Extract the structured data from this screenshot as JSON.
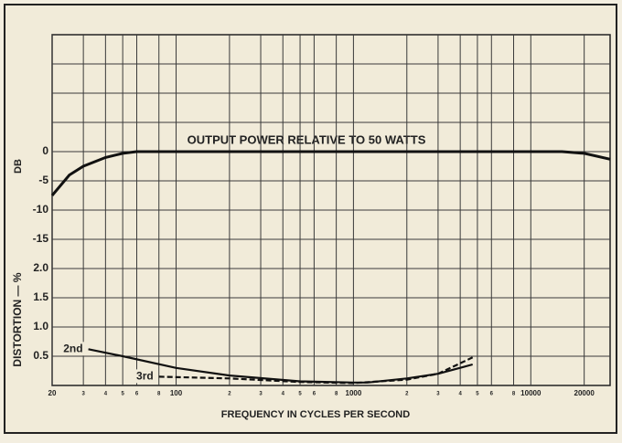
{
  "chart_data": {
    "type": "line",
    "annotation": "OUTPUT POWER RELATIVE TO 50 WATTS",
    "x_label": "FREQUENCY IN CYCLES PER SECOND",
    "y_label": "DB",
    "y2_label": "DISTORTION — %",
    "log_x": true,
    "grid": true,
    "xlim": [
      20,
      28000
    ],
    "xticks": [
      20,
      {
        "value": 30,
        "label": "3"
      },
      {
        "value": 40,
        "label": "4"
      },
      {
        "value": 50,
        "label": "5"
      },
      {
        "value": 60,
        "label": "6"
      },
      {
        "value": 80,
        "label": "8"
      },
      100,
      {
        "value": 200,
        "label": "2"
      },
      {
        "value": 300,
        "label": "3"
      },
      {
        "value": 400,
        "label": "4"
      },
      {
        "value": 500,
        "label": "5"
      },
      {
        "value": 600,
        "label": "6"
      },
      {
        "value": 800,
        "label": "8"
      },
      1000,
      {
        "value": 2000,
        "label": "2"
      },
      {
        "value": 3000,
        "label": "3"
      },
      {
        "value": 4000,
        "label": "4"
      },
      {
        "value": 5000,
        "label": "5"
      },
      {
        "value": 6000,
        "label": "6"
      },
      {
        "value": 8000,
        "label": "8"
      },
      10000,
      20000
    ],
    "ylim": [
      -40,
      20
    ],
    "yticks": [
      0,
      -5,
      -10,
      -15
    ],
    "y2lim": [
      0,
      6
    ],
    "y2ticks": [
      0.5,
      {
        "value": 1,
        "label": "1.0"
      },
      1.5,
      {
        "value": 2,
        "label": "2.0"
      }
    ],
    "series": [
      {
        "name": "Output power",
        "color": "#111111",
        "axis": "y",
        "x": [
          20,
          25,
          30,
          40,
          50,
          60,
          1000,
          10000,
          15000,
          20000,
          28000
        ],
        "values": [
          -7.5,
          -4,
          -2.5,
          -1,
          -0.3,
          0,
          0,
          0,
          0,
          -0.3,
          -1.3
        ]
      },
      {
        "name": "2nd",
        "color": "#111111",
        "axis": "y2",
        "x": [
          32,
          50,
          100,
          200,
          500,
          1000,
          1200,
          2000,
          3000,
          4700
        ],
        "values": [
          0.62,
          0.5,
          0.3,
          0.17,
          0.07,
          0.05,
          0.05,
          0.12,
          0.2,
          0.36
        ]
      },
      {
        "name": "3rd",
        "color": "#111111",
        "axis": "y2",
        "dashed": true,
        "x": [
          80,
          200,
          500,
          1000,
          2000,
          3000,
          4700
        ],
        "values": [
          0.15,
          0.12,
          0.06,
          0.04,
          0.1,
          0.2,
          0.48
        ]
      }
    ]
  }
}
